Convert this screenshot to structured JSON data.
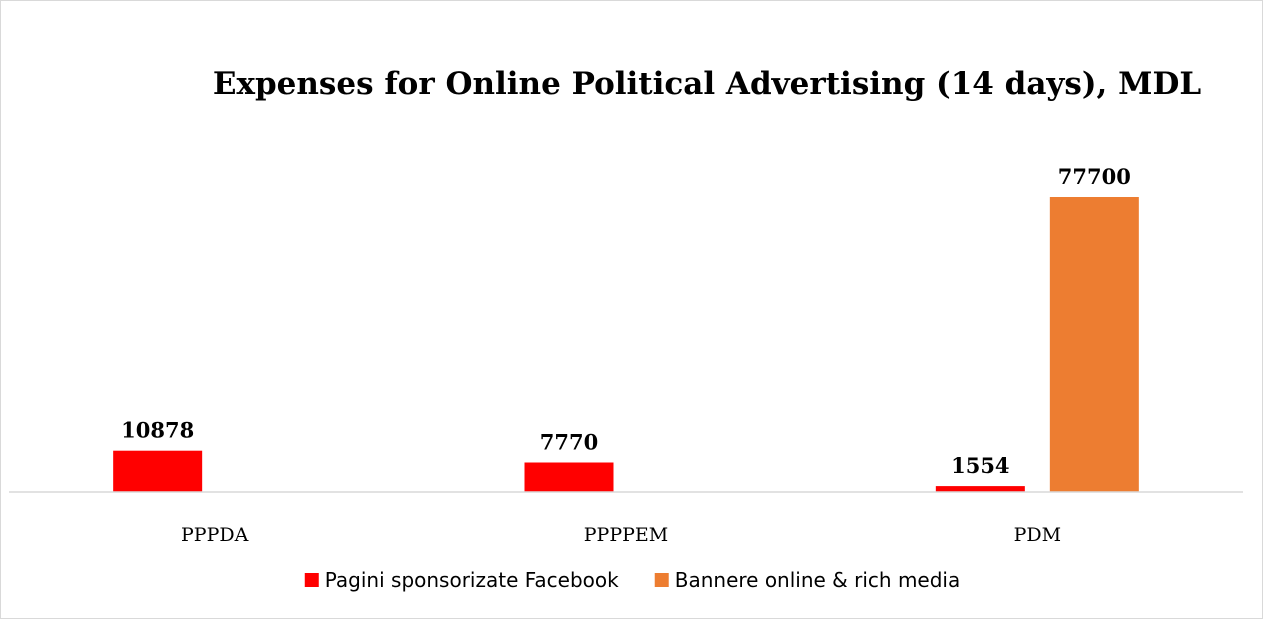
{
  "chart_data": {
    "type": "bar",
    "title": "Expenses for Online Political Advertising (14 days), MDL",
    "xlabel": "",
    "ylabel": "",
    "categories": [
      "PPPDA",
      "PPPPEM",
      "PDM"
    ],
    "series": [
      {
        "name": "Pagini sponsorizate Facebook",
        "values": [
          10878,
          7770,
          1554
        ],
        "color": "#ff0000"
      },
      {
        "name": "Bannere online & rich media",
        "values": [
          null,
          null,
          77700
        ],
        "color": "#ed7d31"
      }
    ],
    "ylim": [
      0,
      77700
    ],
    "grid": false,
    "legend_position": "bottom",
    "data_labels": true
  }
}
